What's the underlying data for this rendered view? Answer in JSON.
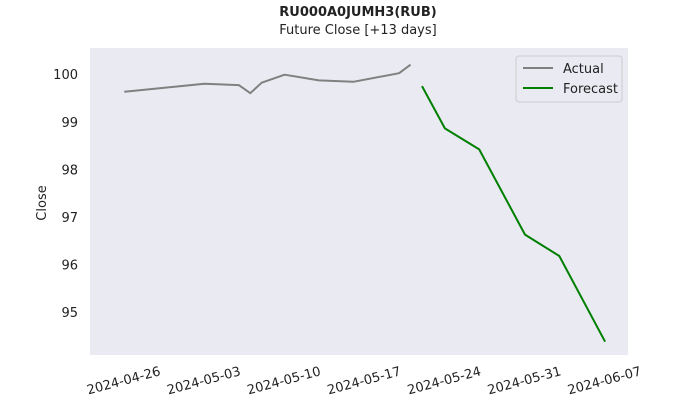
{
  "chart_data": {
    "type": "line",
    "title": "RU000A0JUMH3(RUB)",
    "subtitle": "Future Close [+13 days]",
    "xlabel": "",
    "ylabel": "Close",
    "ylim": [
      94.1,
      100.55
    ],
    "xlim": [
      "2024-04-21",
      "2024-06-07"
    ],
    "x_ticks": [
      "2024-04-26",
      "2024-05-03",
      "2024-05-10",
      "2024-05-17",
      "2024-05-24",
      "2024-05-31",
      "2024-06-07"
    ],
    "y_ticks": [
      95,
      96,
      97,
      98,
      99,
      100
    ],
    "grid": false,
    "legend_position": "top-right",
    "colors": {
      "plot_bg": "#eaeaf2",
      "actual": "#808080",
      "forecast": "#008000"
    },
    "series": [
      {
        "name": "Actual",
        "points": [
          [
            "2024-04-24",
            99.63
          ],
          [
            "2024-05-01",
            99.8
          ],
          [
            "2024-05-04",
            99.77
          ],
          [
            "2024-05-05",
            99.6
          ],
          [
            "2024-05-06",
            99.82
          ],
          [
            "2024-05-08",
            99.99
          ],
          [
            "2024-05-11",
            99.87
          ],
          [
            "2024-05-14",
            99.84
          ],
          [
            "2024-05-18",
            100.02
          ],
          [
            "2024-05-19",
            100.2
          ]
        ]
      },
      {
        "name": "Forecast",
        "points": [
          [
            "2024-05-20",
            99.75
          ],
          [
            "2024-05-22",
            98.86
          ],
          [
            "2024-05-25",
            98.42
          ],
          [
            "2024-05-29",
            96.63
          ],
          [
            "2024-06-01",
            96.18
          ],
          [
            "2024-06-05",
            94.38
          ]
        ]
      }
    ]
  }
}
